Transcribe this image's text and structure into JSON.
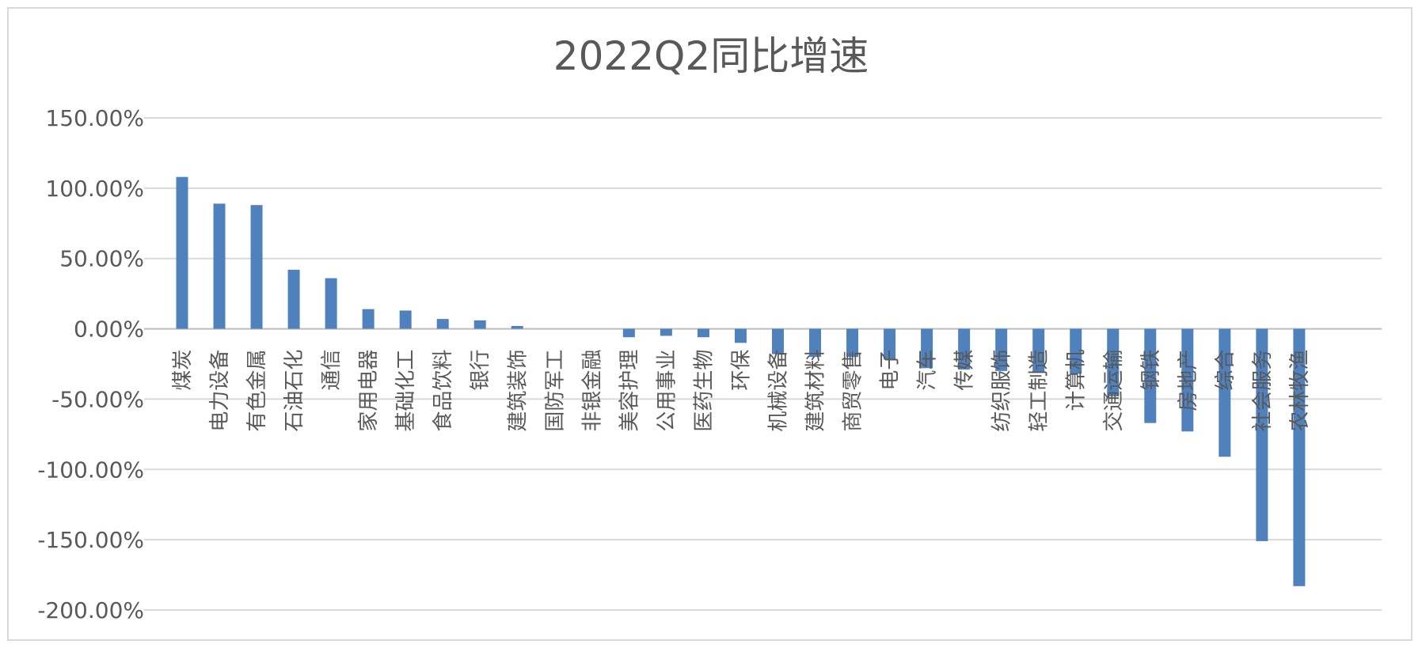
{
  "chart_data": {
    "type": "bar",
    "title": "2022Q2同比增速",
    "xlabel": "",
    "ylabel": "",
    "ylim": [
      -200,
      150
    ],
    "yticks": [
      150,
      100,
      50,
      0,
      -50,
      -100,
      -150,
      -200
    ],
    "ytick_labels": [
      "150.00%",
      "100.00%",
      "50.00%",
      "0.00%",
      "-50.00%",
      "-100.00%",
      "-150.00%",
      "-200.00%"
    ],
    "grid": true,
    "legend": "none",
    "bar_color": "#4f81bd",
    "categories": [
      "煤炭",
      "电力设备",
      "有色金属",
      "石油石化",
      "通信",
      "家用电器",
      "基础化工",
      "食品饮料",
      "银行",
      "建筑装饰",
      "国防军工",
      "非银金融",
      "美容护理",
      "公用事业",
      "医药生物",
      "环保",
      "机械设备",
      "建筑材料",
      "商贸零售",
      "电子",
      "汽车",
      "传媒",
      "纺织服饰",
      "轻工制造",
      "计算机",
      "交通运输",
      "钢铁",
      "房地产",
      "综合",
      "社会服务",
      "农林牧渔"
    ],
    "values": [
      108,
      89,
      88,
      42,
      36,
      14,
      13,
      7,
      6,
      2,
      0,
      0,
      -6,
      -5,
      -6,
      -10,
      -18,
      -20,
      -20,
      -22,
      -28,
      -29,
      -30,
      -31,
      -32,
      -48,
      -67,
      -73,
      -91,
      -151,
      -183
    ]
  }
}
